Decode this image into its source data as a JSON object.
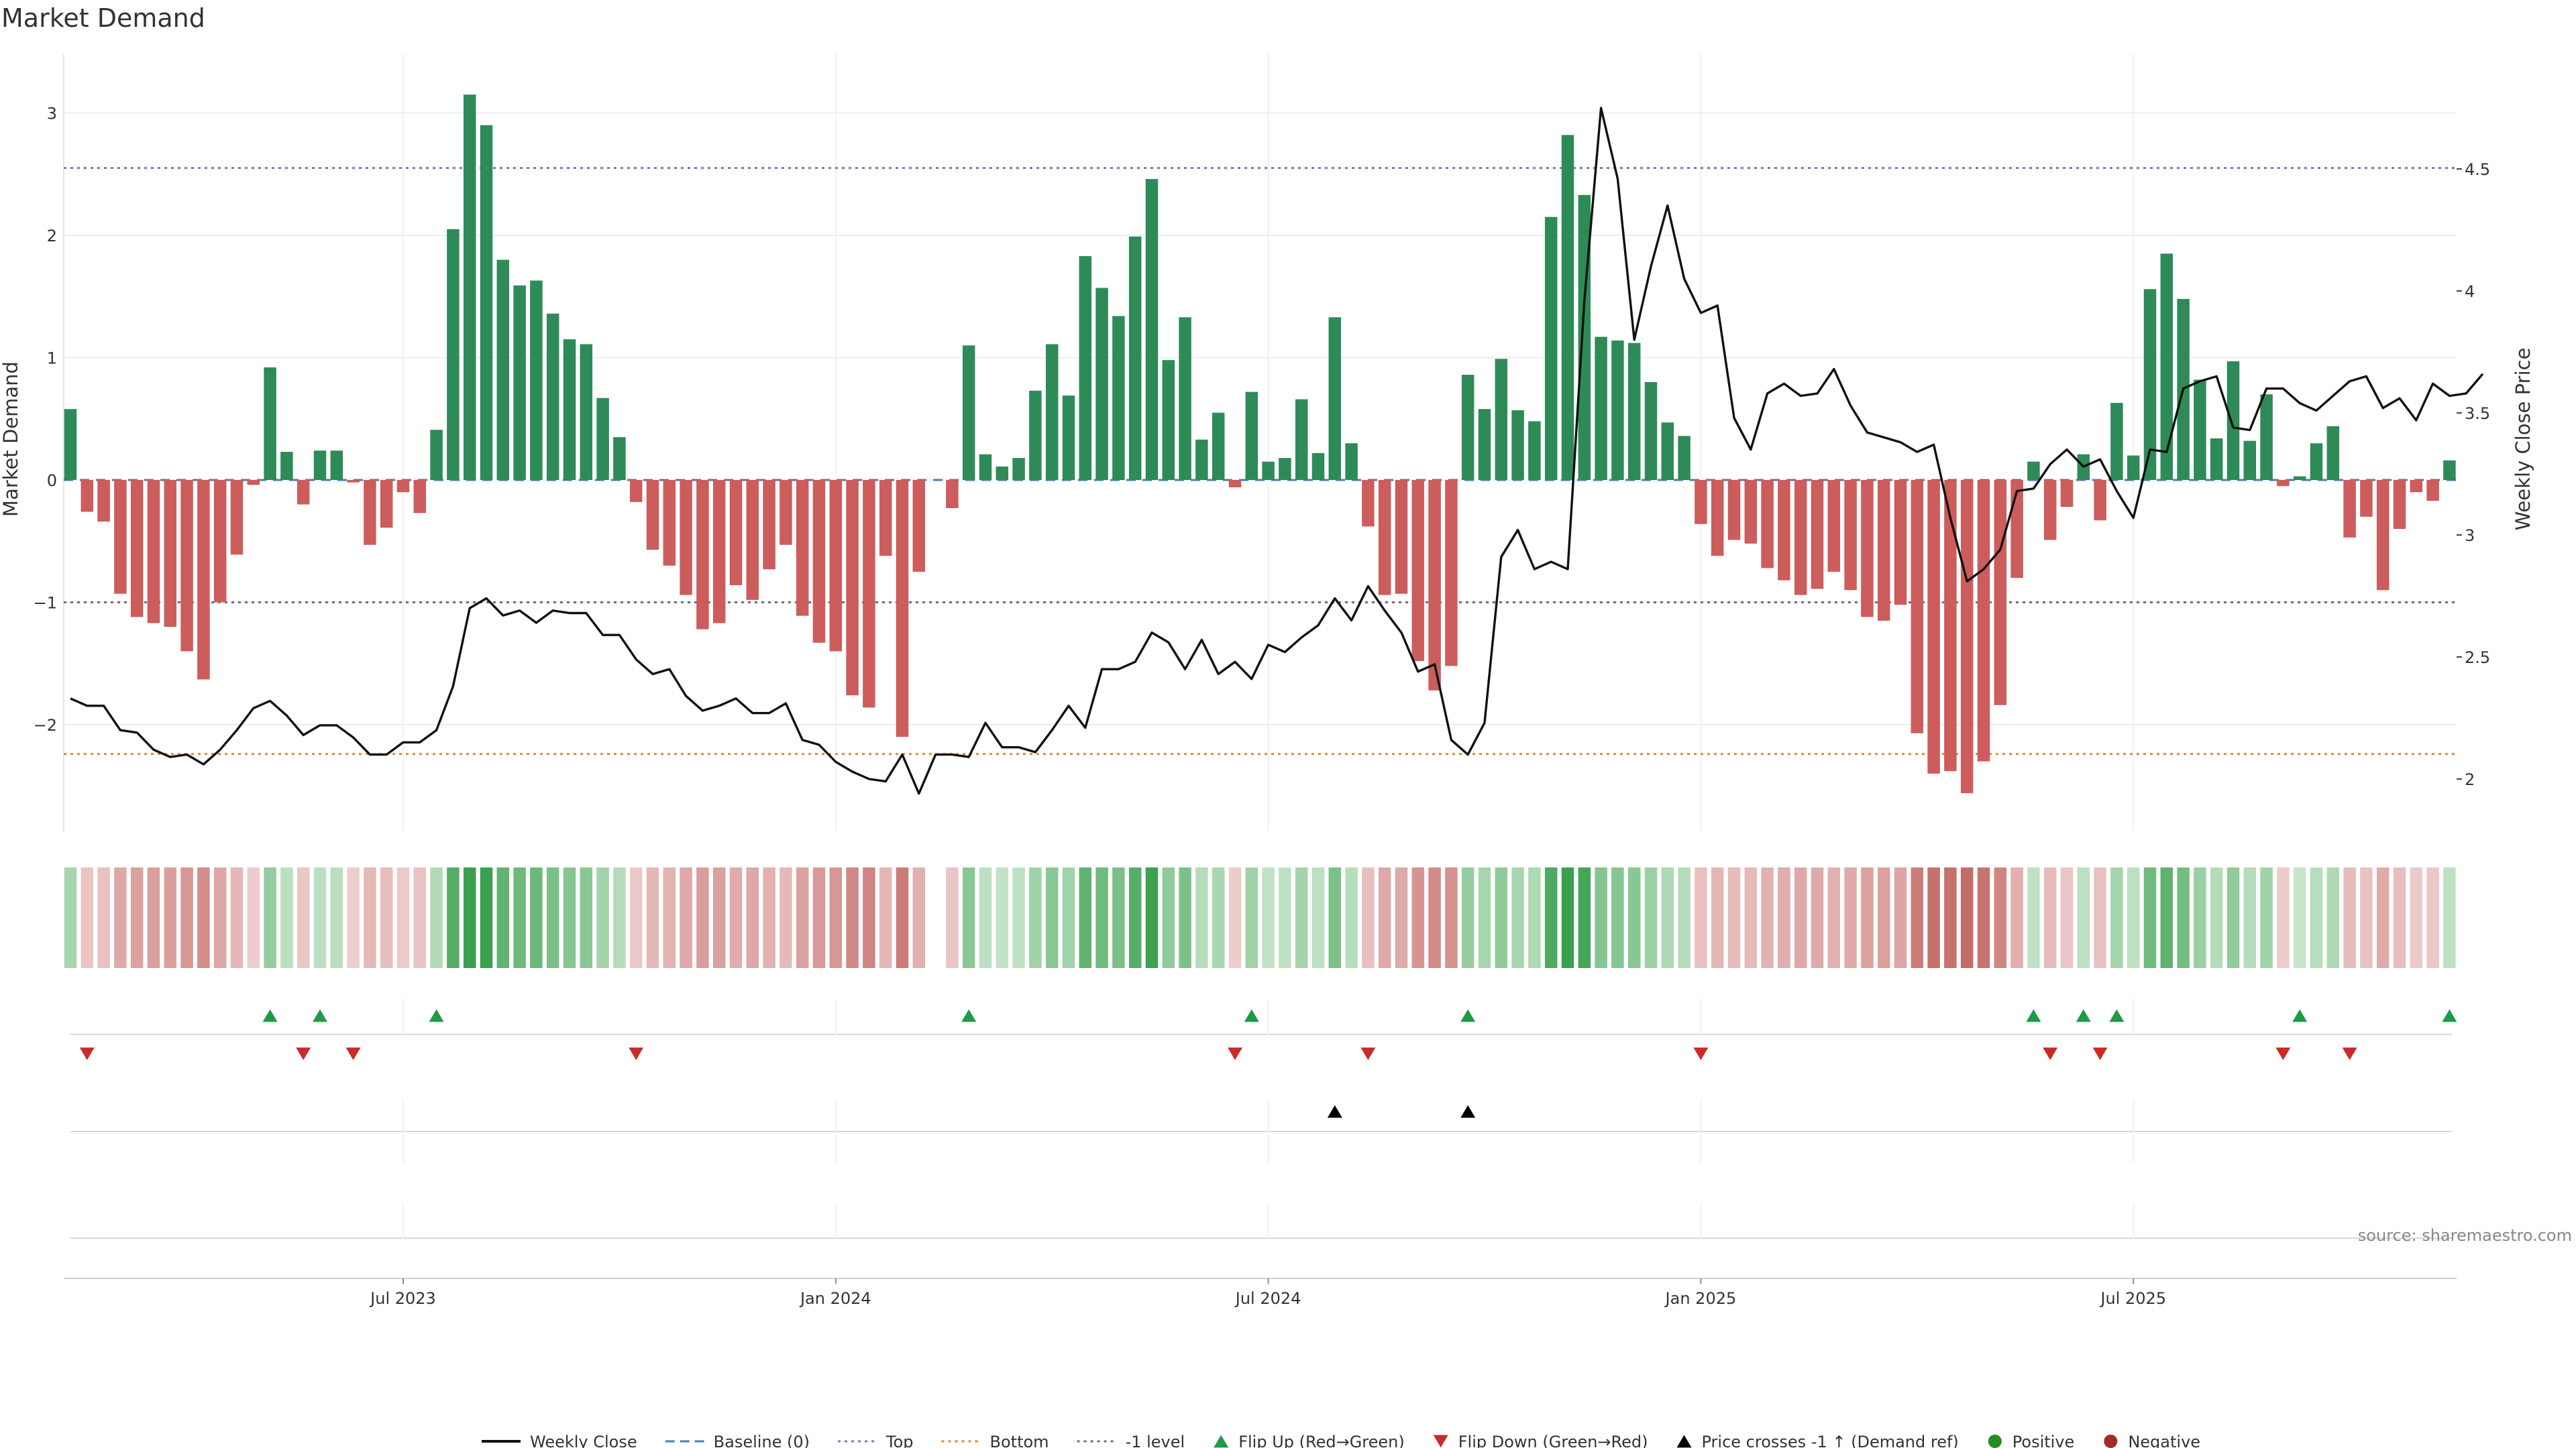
{
  "chart_data": {
    "type": "bar",
    "title": "Market Demand",
    "ylabel": "Market Demand",
    "y2label": "Weekly Close Price",
    "ylim": [
      -2.9,
      3.5
    ],
    "y2lim": [
      1.82,
      4.87
    ],
    "yticks": [
      3,
      2,
      1,
      0,
      -1,
      -2
    ],
    "yticklabels": [
      "3",
      "2",
      "1",
      "0",
      "−1",
      "−2"
    ],
    "y2ticks": [
      4.5,
      4,
      3.5,
      3,
      2.5,
      2
    ],
    "y2ticklabels": [
      "4.5",
      "4",
      "3.5",
      "3",
      "2.5",
      "2"
    ],
    "levels": {
      "baseline": 0,
      "top": 2.55,
      "bottom": -2.24,
      "minus_one": -1
    },
    "x_ticks": [
      {
        "week": 20,
        "label": "Jul 2023"
      },
      {
        "week": 46,
        "label": "Jan 2024"
      },
      {
        "week": 72,
        "label": "Jul 2024"
      },
      {
        "week": 98,
        "label": "Jan 2025"
      },
      {
        "week": 124,
        "label": "Jul 2025"
      }
    ],
    "demand": [
      0.58,
      -0.26,
      -0.34,
      -0.93,
      -1.12,
      -1.17,
      -1.2,
      -1.4,
      -1.63,
      -1.0,
      -0.61,
      -0.04,
      0.92,
      0.23,
      -0.2,
      0.24,
      0.24,
      -0.02,
      -0.53,
      -0.39,
      -0.1,
      -0.27,
      0.41,
      2.05,
      3.15,
      2.9,
      1.8,
      1.59,
      1.63,
      1.36,
      1.15,
      1.11,
      0.67,
      0.35,
      -0.18,
      -0.57,
      -0.7,
      -0.94,
      -1.22,
      -1.17,
      -0.86,
      -0.98,
      -0.73,
      -0.53,
      -1.11,
      -1.33,
      -1.4,
      -1.76,
      -1.86,
      -0.62,
      -2.1,
      -0.75,
      0.0,
      -0.23,
      1.1,
      0.21,
      0.11,
      0.18,
      0.73,
      1.11,
      0.69,
      1.83,
      1.57,
      1.34,
      1.99,
      2.46,
      0.98,
      1.33,
      0.33,
      0.55,
      -0.06,
      0.72,
      0.15,
      0.18,
      0.66,
      0.22,
      1.33,
      0.3,
      -0.38,
      -0.94,
      -0.93,
      -1.48,
      -1.72,
      -1.52,
      0.86,
      0.58,
      0.99,
      0.57,
      0.48,
      2.15,
      2.82,
      2.33,
      1.17,
      1.14,
      1.12,
      0.8,
      0.47,
      0.36,
      -0.36,
      -0.62,
      -0.49,
      -0.52,
      -0.72,
      -0.82,
      -0.94,
      -0.89,
      -0.75,
      -0.9,
      -1.12,
      -1.15,
      -1.02,
      -2.07,
      -2.4,
      -2.38,
      -2.56,
      -2.3,
      -1.84,
      -0.8,
      0.15,
      -0.49,
      -0.22,
      0.21,
      -0.33,
      0.63,
      0.2,
      1.56,
      1.85,
      1.48,
      0.82,
      0.34,
      0.97,
      0.32,
      0.7,
      -0.05,
      0.03,
      0.3,
      0.44,
      -0.47,
      -0.3,
      -0.9,
      -0.4,
      -0.1,
      -0.17,
      0.16
    ],
    "weekly_close": [
      2.33,
      2.3,
      2.3,
      2.2,
      2.19,
      2.12,
      2.09,
      2.1,
      2.06,
      2.12,
      2.2,
      2.29,
      2.32,
      2.26,
      2.18,
      2.22,
      2.22,
      2.17,
      2.1,
      2.1,
      2.15,
      2.15,
      2.2,
      2.38,
      2.7,
      2.74,
      2.67,
      2.69,
      2.64,
      2.69,
      2.68,
      2.68,
      2.59,
      2.59,
      2.49,
      2.43,
      2.45,
      2.34,
      2.28,
      2.3,
      2.33,
      2.27,
      2.27,
      2.31,
      2.16,
      2.14,
      2.07,
      2.03,
      2.0,
      1.99,
      2.1,
      1.94,
      2.1,
      2.1,
      2.09,
      2.23,
      2.13,
      2.13,
      2.11,
      2.2,
      2.3,
      2.21,
      2.45,
      2.45,
      2.48,
      2.6,
      2.56,
      2.45,
      2.57,
      2.43,
      2.48,
      2.41,
      2.55,
      2.52,
      2.58,
      2.63,
      2.74,
      2.65,
      2.79,
      2.69,
      2.6,
      2.44,
      2.47,
      2.16,
      2.1,
      2.23,
      2.91,
      3.02,
      2.86,
      2.89,
      2.86,
      3.96,
      4.75,
      4.46,
      3.8,
      4.1,
      4.35,
      4.05,
      3.91,
      3.94,
      3.48,
      3.35,
      3.58,
      3.62,
      3.57,
      3.58,
      3.68,
      3.53,
      3.42,
      3.4,
      3.38,
      3.34,
      3.37,
      3.07,
      2.81,
      2.86,
      2.94,
      3.18,
      3.19,
      3.29,
      3.35,
      3.28,
      3.31,
      3.18,
      3.07,
      3.35,
      3.34,
      3.6,
      3.63,
      3.65,
      3.44,
      3.43,
      3.6,
      3.6,
      3.54,
      3.51,
      3.57,
      3.63,
      3.65,
      3.52,
      3.56,
      3.47,
      3.62,
      3.57,
      3.58,
      3.66
    ],
    "flip_up_weeks": [
      12,
      15,
      22,
      54,
      71,
      84,
      118,
      121,
      123,
      134,
      143
    ],
    "flip_down_weeks": [
      1,
      14,
      17,
      34,
      70,
      78,
      98,
      119,
      122,
      133,
      137
    ],
    "price_cross_weeks": [
      76,
      84
    ],
    "legend": [
      {
        "label": "Weekly Close",
        "swatch": "line",
        "color": "#111111"
      },
      {
        "label": "Baseline (0)",
        "swatch": "dashed",
        "color": "#4a7fb5"
      },
      {
        "label": "Top",
        "swatch": "dotted",
        "color": "#7a78b8"
      },
      {
        "label": "Bottom",
        "swatch": "dotted",
        "color": "#e08a2e"
      },
      {
        "label": "-1 level",
        "swatch": "dotted",
        "color": "#6d6d88"
      },
      {
        "label": "Flip Up (Red→Green)",
        "swatch": "tri-up",
        "color": "#1e9a48"
      },
      {
        "label": "Flip Down (Green→Red)",
        "swatch": "tri-down",
        "color": "#cc2a2a"
      },
      {
        "label": "Price crosses -1 ↑ (Demand ref)",
        "swatch": "tri-up",
        "color": "#000000"
      },
      {
        "label": "Positive",
        "swatch": "dot",
        "color": "#228b22"
      },
      {
        "label": "Negative",
        "swatch": "dot",
        "color": "#a52a2a"
      }
    ],
    "source": "source: sharemaestro.com",
    "colors": {
      "positive": "#2e8b57",
      "negative": "#cd5c5c",
      "price": "#111111"
    }
  }
}
